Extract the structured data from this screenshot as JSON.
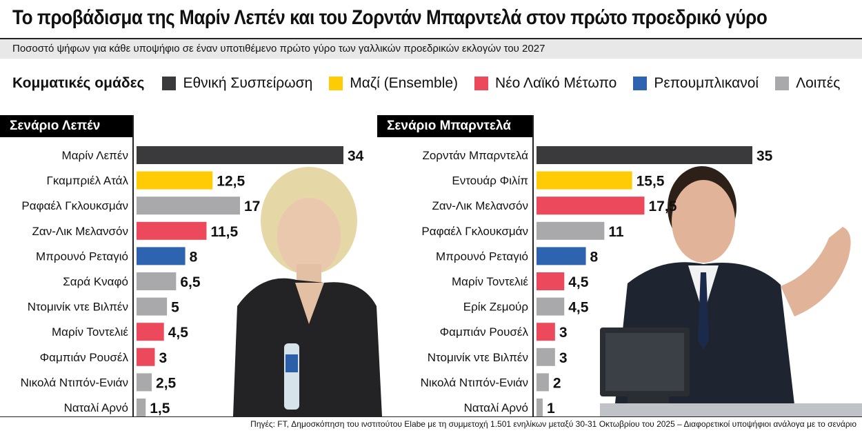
{
  "title": "Το προβάδισμα της Μαρίν Λεπέν και του Ζορντάν Μπαρντελά στον πρώτο προεδρικό γύρο",
  "subtitle": "Ποσοστό ψήφων για κάθε υποψήφιο σε έναν υποτιθέμενο πρώτο γύρο των γαλλικών προεδρικών εκλογών του 2027",
  "legend": {
    "title": "Κομματικές ομάδες",
    "items": [
      {
        "label": "Εθνική Συσπείρωση",
        "color": "#3a3a3c"
      },
      {
        "label": "Μαζί (Ensemble)",
        "color": "#ffcb05"
      },
      {
        "label": "Νέο Λαϊκό Μέτωπο",
        "color": "#ec4a5c"
      },
      {
        "label": "Ρεπουμπλικανοί",
        "color": "#2e63b0"
      },
      {
        "label": "Λοιπές",
        "color": "#a9a9ac"
      }
    ]
  },
  "chart_data": [
    {
      "type": "bar",
      "orientation": "horizontal",
      "title": "Σενάριο Λεπέν",
      "categories": [
        "Μαρίν Λεπέν",
        "Γκαμπριέλ Ατάλ",
        "Ραφαέλ Γκλουκσμάν",
        "Ζαν-Λικ Μελανσόν",
        "Μπρουνό Ρεταγιό",
        "Σαρά Κναφό",
        "Ντομινίκ ντε Βιλπέν",
        "Μαρίν Τοντελιέ",
        "Φαμπιάν Ρουσέλ",
        "Νικολά Ντιπόν-Ενιάν",
        "Ναταλί Αρνό"
      ],
      "values": [
        34,
        12.5,
        17,
        11.5,
        8,
        6.5,
        5,
        4.5,
        3,
        2.5,
        1.5
      ],
      "value_labels": [
        "34",
        "12,5",
        "17",
        "11,5",
        "8",
        "6,5",
        "5",
        "4,5",
        "3",
        "2,5",
        "1,5"
      ],
      "colors": [
        "#3a3a3c",
        "#ffcb05",
        "#a9a9ac",
        "#ec4a5c",
        "#2e63b0",
        "#a9a9ac",
        "#a9a9ac",
        "#ec4a5c",
        "#ec4a5c",
        "#a9a9ac",
        "#a9a9ac"
      ],
      "xlim": [
        0,
        34
      ]
    },
    {
      "type": "bar",
      "orientation": "horizontal",
      "title": "Σενάριο Μπαρντελά",
      "categories": [
        "Ζορντάν Μπαρντελά",
        "Εντουάρ Φιλίπ",
        "Ζαν-Λικ Μελανσόν",
        "Ραφαέλ Γκλουκσμάν",
        "Μπρουνό Ρεταγιό",
        "Μαρίν Τοντελιέ",
        "Ερίκ Ζεμούρ",
        "Φαμπιάν Ρουσέλ",
        "Ντομινίκ ντε Βιλπέν",
        "Νικολά Ντιπόν-Ενιάν",
        "Ναταλί Αρνό"
      ],
      "values": [
        35,
        15.5,
        17.5,
        11,
        8,
        4.5,
        4.5,
        3,
        3,
        2,
        1
      ],
      "value_labels": [
        "35",
        "15,5",
        "17,5",
        "11",
        "8",
        "4,5",
        "4,5",
        "3",
        "3",
        "2",
        "1"
      ],
      "colors": [
        "#3a3a3c",
        "#ffcb05",
        "#ec4a5c",
        "#a9a9ac",
        "#2e63b0",
        "#ec4a5c",
        "#a9a9ac",
        "#ec4a5c",
        "#a9a9ac",
        "#a9a9ac",
        "#a9a9ac"
      ],
      "xlim": [
        0,
        35
      ]
    }
  ],
  "source": "Πηγές: FT, Δημοσκόπηση του ινστιτούτου Elabe με τη συμμετοχή 1.501 ενηλίκων μεταξύ 30-31 Οκτωβρίου του 2025 – Διαφορετικοί υποψήφιοι ανάλογα με το σενάριο"
}
